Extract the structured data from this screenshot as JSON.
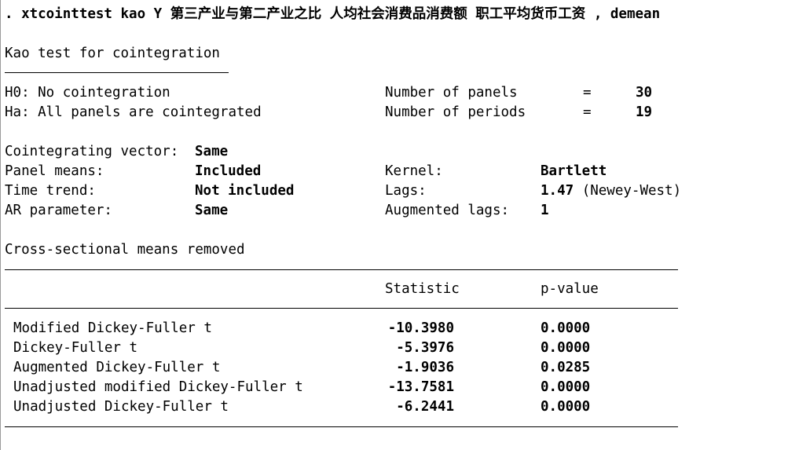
{
  "command": {
    "prefix": ". ",
    "text": "xtcointtest kao Y 第三产业与第二产业之比 人均社会消费品消费额 职工平均货币工资 , demean"
  },
  "test_title": "Kao test for cointegration",
  "hypotheses": {
    "h0": "H0: No cointegration",
    "ha": "Ha: All panels are cointegrated"
  },
  "panels": {
    "label": "Number of panels",
    "eq": "=",
    "value": "30"
  },
  "periods": {
    "label": "Number of periods",
    "eq": "=",
    "value": "19"
  },
  "settings": [
    {
      "label": "Cointegrating vector:",
      "value": "Same"
    },
    {
      "label": "Panel means:",
      "value": "Included"
    },
    {
      "label": "Time trend:",
      "value": "Not included"
    },
    {
      "label": "AR parameter:",
      "value": "Same"
    }
  ],
  "settings_right": [
    {
      "label": "Kernel:",
      "value": "Bartlett",
      "note": ""
    },
    {
      "label": "Lags:",
      "value": "1.47",
      "note": "(Newey-West)"
    },
    {
      "label": "Augmented lags:",
      "value": "1",
      "note": ""
    }
  ],
  "note": "Cross-sectional means removed",
  "table": {
    "headers": {
      "statistic": "Statistic",
      "pvalue": "p-value"
    },
    "rows": [
      {
        "name": "Modified Dickey-Fuller t",
        "statistic": "-10.3980",
        "pvalue": "0.0000"
      },
      {
        "name": "Dickey-Fuller t",
        "statistic": "-5.3976",
        "pvalue": "0.0000"
      },
      {
        "name": "Augmented Dickey-Fuller t",
        "statistic": "-1.9036",
        "pvalue": "0.0285"
      },
      {
        "name": "Unadjusted modified Dickey-Fuller t",
        "statistic": "-13.7581",
        "pvalue": "0.0000"
      },
      {
        "name": "Unadjusted Dickey-Fuller t",
        "statistic": "-6.2441",
        "pvalue": "0.0000"
      }
    ]
  }
}
